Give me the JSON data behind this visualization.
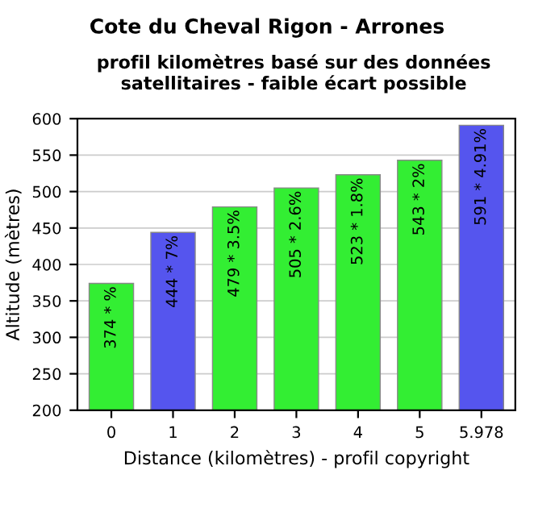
{
  "chart_data": {
    "type": "bar",
    "title": "Cote du Cheval Rigon - Arrones",
    "subtitle": "profil kilomètres basé sur des données satellitaires - faible écart possible",
    "xlabel": "Distance (kilomètres) - profil copyright",
    "ylabel": "Altitude (mètres)",
    "categories": [
      "0",
      "1",
      "2",
      "3",
      "4",
      "5",
      "5.978"
    ],
    "values": [
      374,
      444,
      479,
      505,
      523,
      543,
      591
    ],
    "colors": [
      "#33ee33",
      "#5555ee",
      "#33ee33",
      "#33ee33",
      "#33ee33",
      "#33ee33",
      "#5555ee"
    ],
    "value_labels": [
      "374 * %",
      "444 * 7%",
      "479 * 3.5%",
      "505 * 2.6%",
      "523 * 1.8%",
      "543 * 2%",
      "591 * 4.91%"
    ],
    "ylim": [
      200,
      600
    ],
    "yticks": [
      200,
      250,
      300,
      350,
      400,
      450,
      500,
      550,
      600
    ],
    "grid": "y"
  }
}
